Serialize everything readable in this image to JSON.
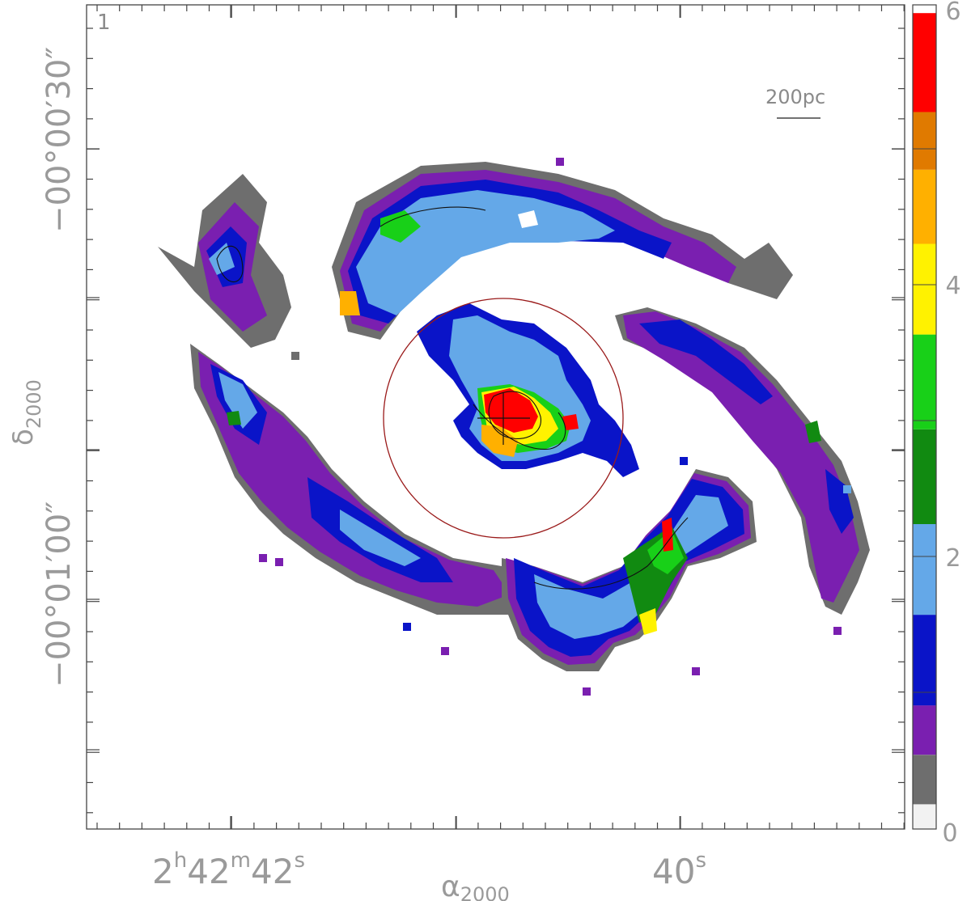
{
  "panel_label": "1",
  "scale_bar_label": "200pc",
  "xaxis": {
    "label_main": "α",
    "label_sub": "2000",
    "ticks": [
      {
        "h": "2",
        "h_unit": "h",
        "m": "42",
        "m_unit": "m",
        "s": "42",
        "s_unit": "s"
      },
      {
        "s": "40",
        "s_unit": "s"
      }
    ]
  },
  "yaxis": {
    "label_main": "δ",
    "label_sub": "2000",
    "ticks": [
      "−00°00′30″",
      "−00°01′00″"
    ]
  },
  "colorbar": {
    "labels": [
      "0",
      "2",
      "4",
      "6"
    ],
    "colors": [
      "#f2f2f2",
      "#6e6e6e",
      "#7a1fb0",
      "#0a14c8",
      "#64a8e8",
      "#118a11",
      "#18d018",
      "#fff200",
      "#ffb000",
      "#e07a00",
      "#ff0000"
    ]
  },
  "map_colors": {
    "gray": "#6e6e6e",
    "purple": "#7a1fb0",
    "blue": "#0a14c8",
    "lightblue": "#64a8e8",
    "darkgreen": "#118a11",
    "green": "#18d018",
    "yellow": "#fff200",
    "orange": "#ffb000",
    "red": "#ff0000",
    "circle": "#9a1a1a"
  }
}
